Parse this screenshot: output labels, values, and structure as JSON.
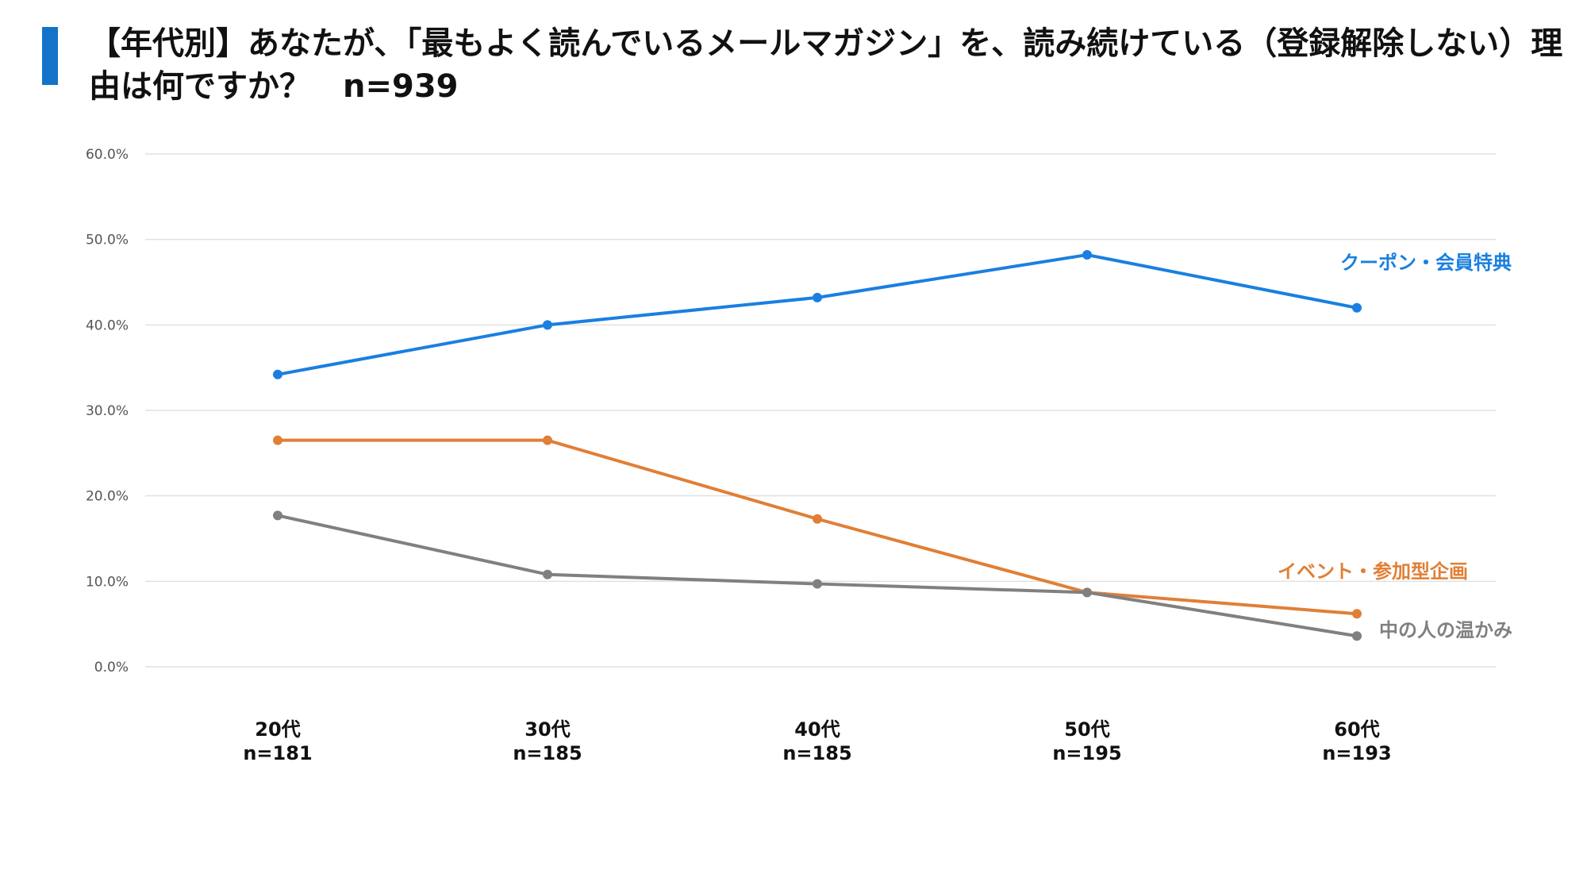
{
  "title": "【年代別】あなたが、「最もよく読んでいるメールマガジン」を、読み続けている（登録解除しない）理由は何ですか？　n=939",
  "chart_data": {
    "type": "line",
    "title": "【年代別】あなたが、「最もよく読んでいるメールマガジン」を、読み続けている（登録解除しない）理由は何ですか？　n=939",
    "categories": [
      "20代",
      "30代",
      "40代",
      "50代",
      "60代"
    ],
    "category_n": [
      "n=181",
      "n=185",
      "n=185",
      "n=195",
      "n=193"
    ],
    "yticks": [
      "0.0%",
      "10.0%",
      "20.0%",
      "30.0%",
      "40.0%",
      "50.0%",
      "60.0%"
    ],
    "ylim": [
      0,
      60
    ],
    "grid": true,
    "legend": "inline-right",
    "series": [
      {
        "name": "クーポン・会員特典",
        "color": "#1a7fe0",
        "values": [
          34.2,
          40.0,
          43.2,
          48.2,
          42.0
        ]
      },
      {
        "name": "イベント・参加型企画",
        "color": "#e07f36",
        "values": [
          26.5,
          26.5,
          17.3,
          8.7,
          6.2
        ]
      },
      {
        "name": "中の人の温かみ",
        "color": "#808080",
        "values": [
          17.7,
          10.8,
          9.7,
          8.7,
          3.6
        ]
      }
    ]
  }
}
